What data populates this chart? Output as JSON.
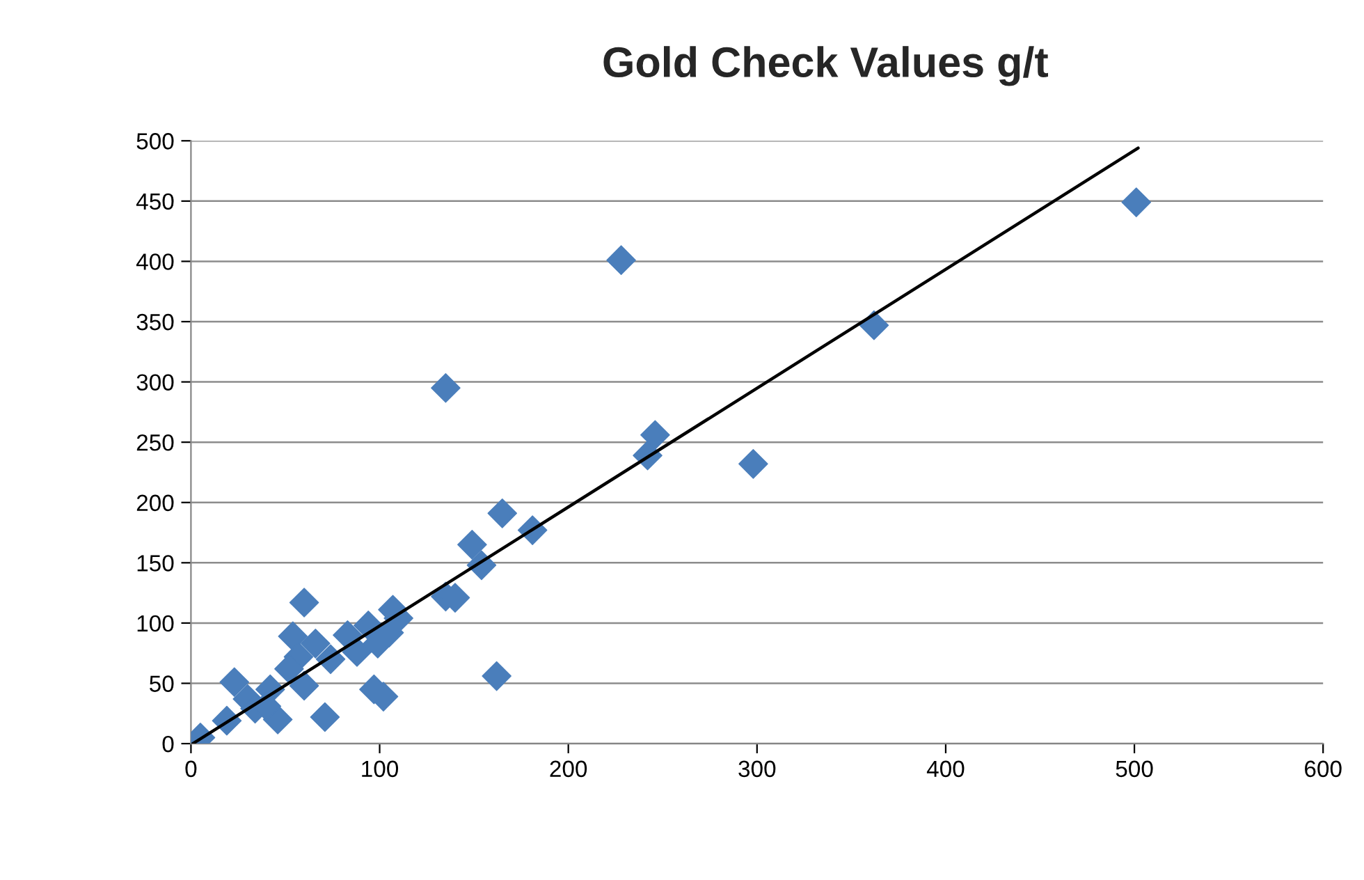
{
  "chart_data": {
    "type": "scatter",
    "title": "Gold Check Values g/t",
    "xlim": [
      0,
      600
    ],
    "xticks": [
      0,
      100,
      200,
      300,
      400,
      500,
      600
    ],
    "ylim": [
      0,
      500
    ],
    "yticks": [
      0,
      50,
      100,
      150,
      200,
      250,
      300,
      350,
      400,
      450,
      500
    ],
    "grid": "y",
    "legend": false,
    "marker": "diamond",
    "series": [
      {
        "color": "#4a7ebb",
        "x": [
          5,
          23,
          19,
          30,
          34,
          42,
          46,
          40,
          54,
          60,
          57,
          52,
          60,
          66,
          74,
          71,
          83,
          88,
          94,
          97,
          102,
          99,
          107,
          105,
          110,
          135,
          140,
          135,
          149,
          154,
          165,
          181,
          162,
          228,
          242,
          246,
          298,
          362,
          501
        ],
        "values": [
          5,
          51,
          19,
          37,
          29,
          45,
          20,
          31,
          89,
          117,
          72,
          62,
          48,
          83,
          70,
          22,
          90,
          76,
          98,
          45,
          39,
          83,
          111,
          92,
          104,
          122,
          121,
          295,
          165,
          148,
          191,
          177,
          56,
          401,
          239,
          256,
          232,
          347,
          449
        ]
      },
      {
        "type": "line",
        "color": "#000000",
        "marker": "none",
        "x": [
          1,
          502
        ],
        "values": [
          0,
          494
        ]
      }
    ]
  }
}
